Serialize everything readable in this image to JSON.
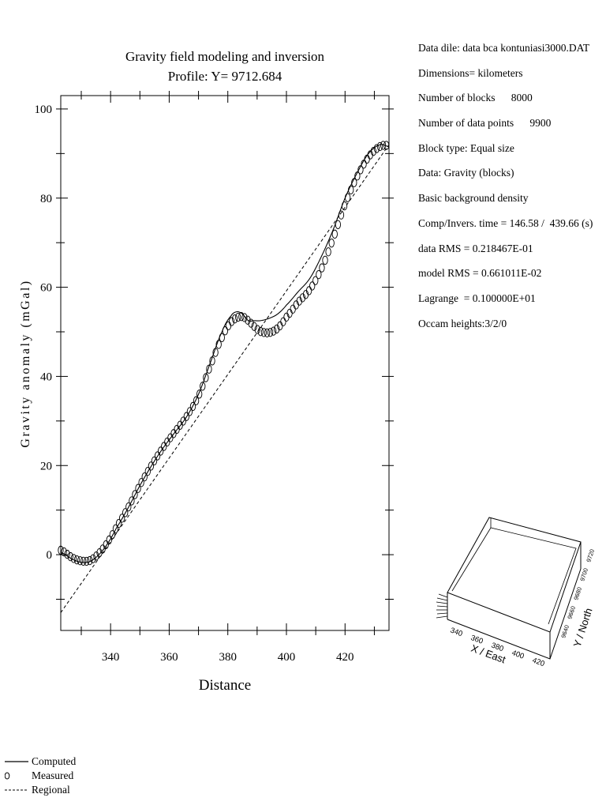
{
  "chart_data": {
    "type": "line",
    "title": "Gravity field modeling and inversion",
    "subtitle": "Profile: Y= 9712.684",
    "xlabel": "Distance",
    "ylabel": "Gravity anomaly (mGal)",
    "xlim": [
      323,
      435
    ],
    "ylim": [
      -17,
      103
    ],
    "x_ticks": [
      340,
      360,
      380,
      400,
      420
    ],
    "y_ticks": [
      0,
      20,
      40,
      60,
      80,
      100
    ],
    "legend_position": "bottom-left",
    "series": [
      {
        "name": "Computed",
        "style": "solid",
        "x": [
          323,
          327,
          330,
          333,
          336,
          339,
          342,
          346,
          350,
          354,
          358,
          362,
          366,
          370,
          374,
          378,
          381,
          383,
          385,
          387,
          389,
          391,
          394,
          397,
          400,
          404,
          408,
          412,
          416,
          420,
          424,
          428,
          432,
          435
        ],
        "y": [
          0.5,
          -1,
          -1.7,
          -1.5,
          0,
          2.5,
          6,
          10.5,
          15.5,
          20,
          24,
          27.5,
          31,
          36,
          43,
          50,
          53.5,
          54.5,
          54,
          52.5,
          52.5,
          52.5,
          53,
          54,
          56,
          59,
          62,
          67,
          73,
          80,
          85.5,
          90,
          92,
          91.5
        ]
      },
      {
        "name": "Measured",
        "style": "circles",
        "x": [
          323,
          327,
          330,
          333,
          336,
          339,
          342,
          346,
          350,
          354,
          358,
          362,
          366,
          370,
          374,
          378,
          381,
          383,
          385,
          387,
          389,
          391,
          394,
          397,
          400,
          404,
          408,
          412,
          416,
          420,
          424,
          428,
          432,
          435
        ],
        "y": [
          1,
          -0.7,
          -1.4,
          -1.3,
          0.3,
          2.8,
          6.2,
          10.6,
          15.6,
          20.1,
          24.1,
          27.6,
          31.1,
          35.6,
          42.3,
          48.7,
          52,
          53.1,
          53.4,
          52.5,
          51.2,
          50.1,
          49.8,
          50.8,
          53.3,
          56.6,
          59.5,
          64.2,
          71,
          78.6,
          84.7,
          89.2,
          91.6,
          91.8
        ]
      },
      {
        "name": "Regional",
        "style": "dashed",
        "x": [
          323,
          435
        ],
        "y": [
          -13,
          92
        ]
      }
    ]
  },
  "info_panel": {
    "lines": [
      "Data dile: data bca kontuniasi3000.DAT",
      "Dimensions= kilometers",
      "Number of blocks      8000",
      "Number of data points      9900",
      "Block type: Equal size",
      "Data: Gravity (blocks)",
      "Basic background density",
      "Comp/Invers. time = 146.58 /  439.66 (s)",
      "data RMS = 0.218467E-01",
      "model RMS = 0.661011E-02",
      "Lagrange  = 0.100000E+01",
      "Occam heights:3/2/0"
    ]
  },
  "block_model": {
    "x_axis_label": "X / East",
    "y_axis_label": "Y / North",
    "x_ticks": [
      "340",
      "360",
      "380",
      "400",
      "420"
    ],
    "y_ticks": [
      "9640",
      "9660",
      "9680",
      "9700",
      "9720"
    ]
  },
  "legend": {
    "items": [
      {
        "label": "Computed",
        "symbol": "solid-line"
      },
      {
        "label": "Measured",
        "symbol": "circle"
      },
      {
        "label": "Regional",
        "symbol": "dashed-line"
      }
    ]
  }
}
